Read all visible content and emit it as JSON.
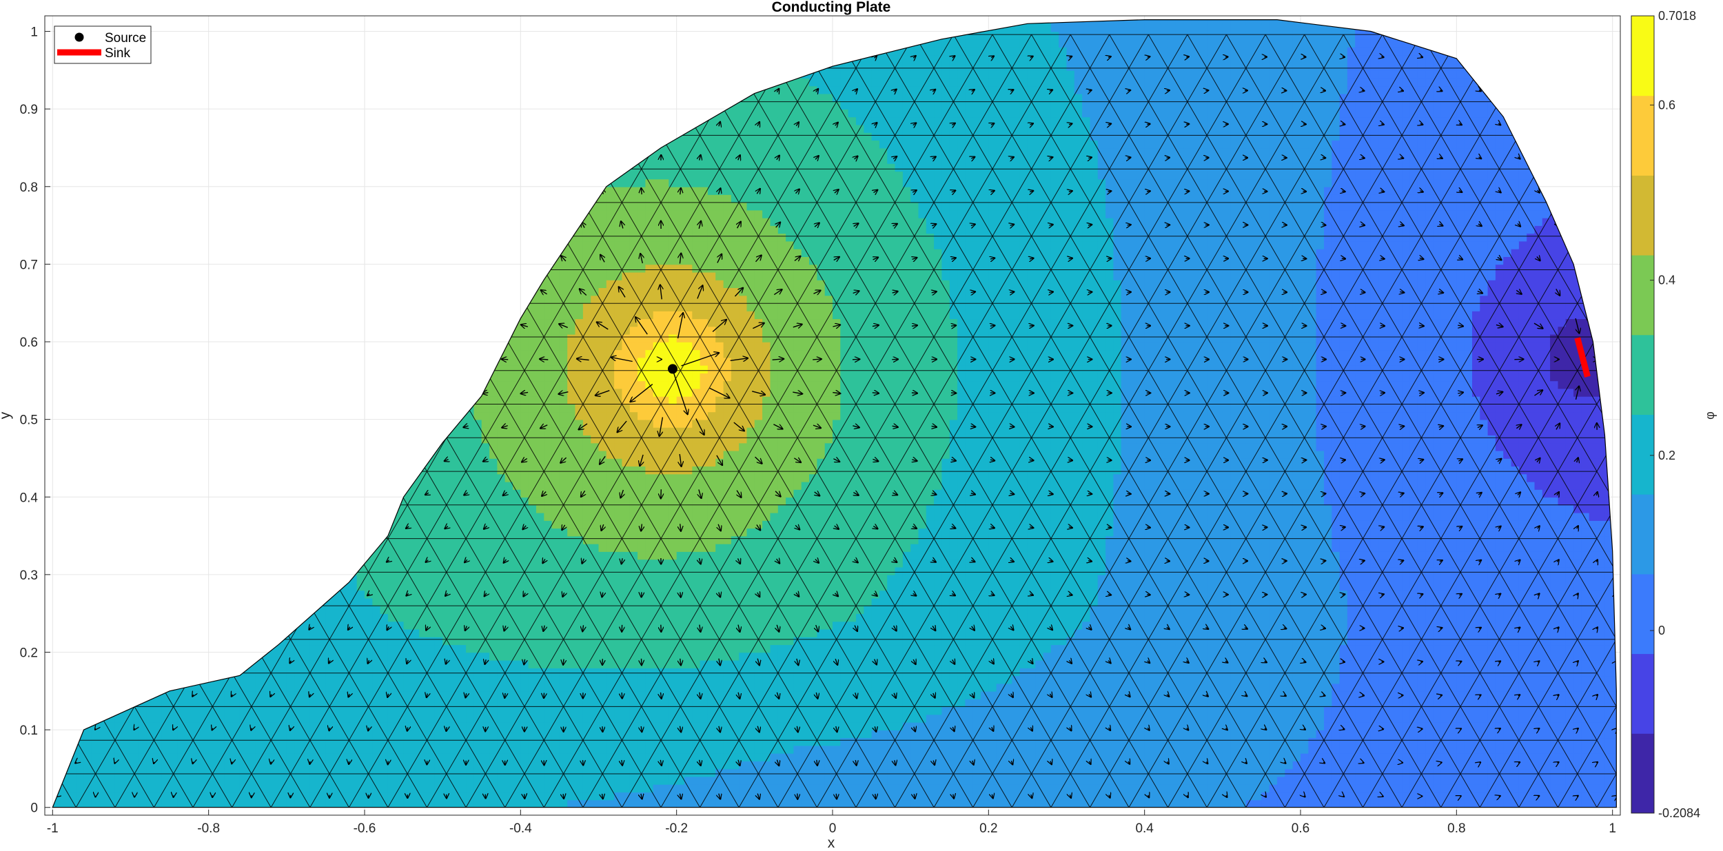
{
  "chart_data": {
    "type": "contour",
    "title": "Conducting Plate",
    "xlabel": "x",
    "ylabel": "y",
    "colorbar_label": "φ",
    "xlim": [
      -1.01,
      1.01
    ],
    "ylim": [
      -0.01,
      1.02
    ],
    "x_ticks": [
      -1,
      -0.8,
      -0.6,
      -0.4,
      -0.2,
      0,
      0.2,
      0.4,
      0.6,
      0.8,
      1
    ],
    "x_tick_labels": [
      "-1",
      "-0.8",
      "-0.6",
      "-0.4",
      "-0.2",
      "0",
      "0.2",
      "0.4",
      "0.6",
      "0.8",
      "1"
    ],
    "y_ticks": [
      0,
      0.1,
      0.2,
      0.3,
      0.4,
      0.5,
      0.6,
      0.7,
      0.8,
      0.9,
      1
    ],
    "y_tick_labels": [
      "0",
      "0.1",
      "0.2",
      "0.3",
      "0.4",
      "0.5",
      "0.6",
      "0.7",
      "0.8",
      "0.9",
      "1"
    ],
    "grid": true,
    "colorbar": {
      "min": -0.2084,
      "max": 0.7018,
      "ticks": [
        -0.2084,
        0,
        0.2,
        0.4,
        0.6,
        0.7018
      ],
      "tick_labels": [
        "-0.2084",
        "0",
        "0.2",
        "0.4",
        "0.6",
        "0.7018"
      ],
      "levels": 10,
      "colors": [
        "#3e26a8",
        "#4744e6",
        "#3b7bfc",
        "#2c99e6",
        "#16b5cd",
        "#2ec29a",
        "#7bc954",
        "#d2b933",
        "#fdcb3a",
        "#f9fb15"
      ]
    },
    "legend": {
      "position": "top-left",
      "entries": [
        {
          "label": "Source",
          "marker": "dot",
          "color": "#000000"
        },
        {
          "label": "Sink",
          "marker": "line",
          "color": "#ff0000"
        }
      ]
    },
    "source": {
      "x": -0.205,
      "y": 0.565
    },
    "sink": {
      "x1": 0.955,
      "y1": 0.605,
      "x2": 0.968,
      "y2": 0.555
    },
    "boundary": [
      [
        -1.0,
        0.0
      ],
      [
        -0.96,
        0.1
      ],
      [
        -0.85,
        0.15
      ],
      [
        -0.76,
        0.17
      ],
      [
        -0.71,
        0.21
      ],
      [
        -0.62,
        0.29
      ],
      [
        -0.57,
        0.35
      ],
      [
        -0.55,
        0.4
      ],
      [
        -0.5,
        0.47
      ],
      [
        -0.45,
        0.53
      ],
      [
        -0.4,
        0.63
      ],
      [
        -0.37,
        0.68
      ],
      [
        -0.29,
        0.8
      ],
      [
        -0.22,
        0.85
      ],
      [
        -0.1,
        0.92
      ],
      [
        0.0,
        0.955
      ],
      [
        0.14,
        0.99
      ],
      [
        0.25,
        1.01
      ],
      [
        0.4,
        1.015
      ],
      [
        0.57,
        1.015
      ],
      [
        0.69,
        1.0
      ],
      [
        0.8,
        0.965
      ],
      [
        0.86,
        0.89
      ],
      [
        0.915,
        0.78
      ],
      [
        0.95,
        0.7
      ],
      [
        0.975,
        0.6
      ],
      [
        0.99,
        0.48
      ],
      [
        1.0,
        0.33
      ],
      [
        1.005,
        0.15
      ],
      [
        1.005,
        0.0
      ],
      [
        0.9,
        0.0
      ],
      [
        0.55,
        0.0
      ],
      [
        0.0,
        0.0
      ],
      [
        -0.3,
        0.0
      ],
      [
        -0.6,
        0.0
      ],
      [
        -0.9,
        0.0
      ]
    ]
  }
}
